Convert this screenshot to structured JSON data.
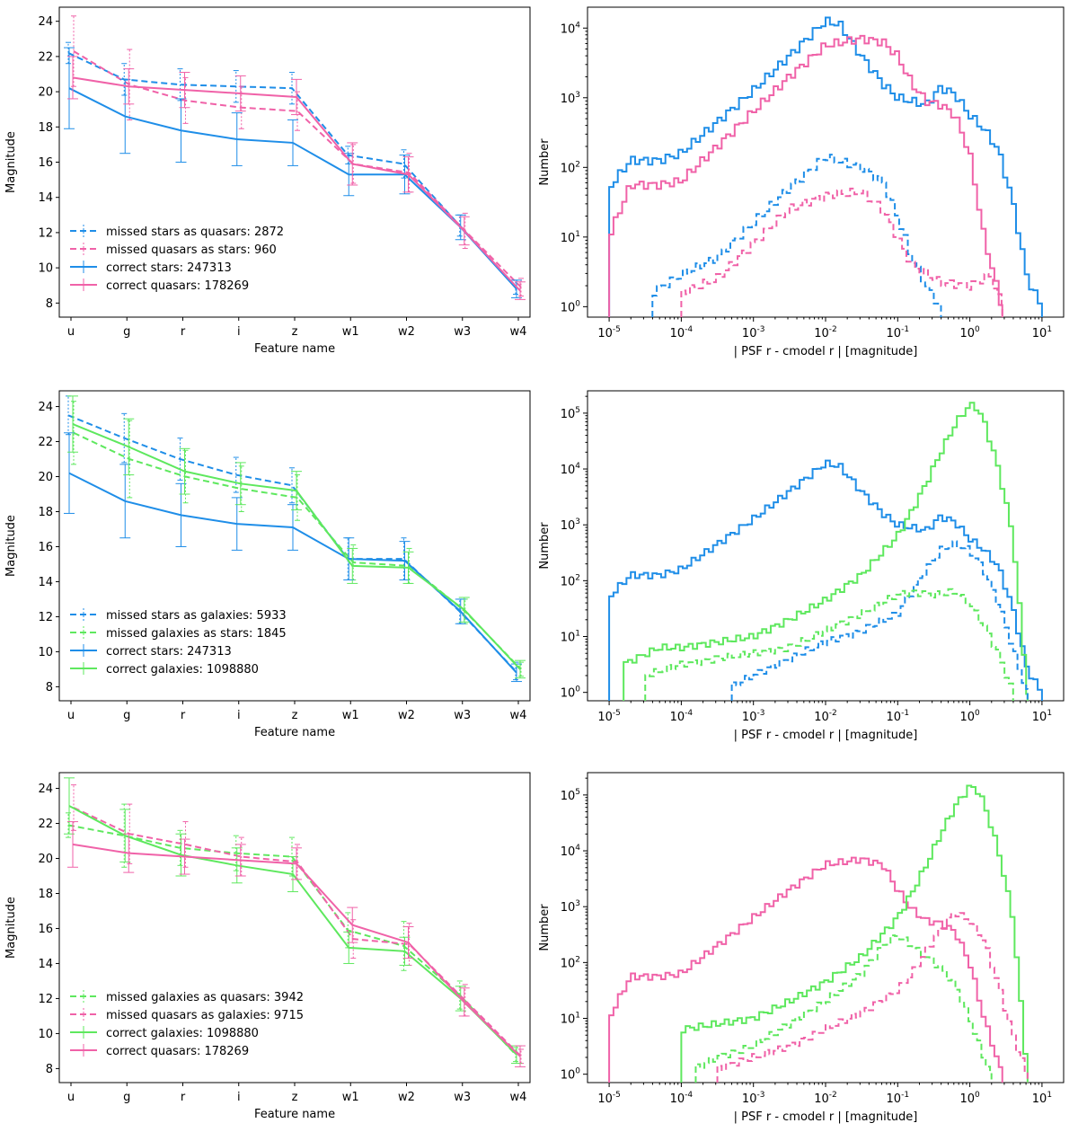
{
  "colors": {
    "star": "#1f8ee8",
    "quasar": "#f062a8",
    "galaxy": "#5ee85e"
  },
  "chart_data": [
    {
      "type": "line",
      "title": "",
      "xlabel": "Feature name",
      "ylabel": "Magnitude",
      "categories": [
        "u",
        "g",
        "r",
        "i",
        "z",
        "w1",
        "w2",
        "w3",
        "w4"
      ],
      "ylim": [
        7.2,
        24.8
      ],
      "yticks": [
        "8",
        "10",
        "12",
        "14",
        "16",
        "18",
        "20",
        "22",
        "24"
      ],
      "legend_position": "lower-left",
      "series": [
        {
          "name": "missed stars as quasars: 2872",
          "cls": "star",
          "dashed": true,
          "values": [
            22.2,
            20.7,
            20.4,
            20.3,
            20.2,
            16.4,
            15.9,
            12.4,
            8.9
          ],
          "err": [
            0.6,
            0.9,
            0.9,
            0.9,
            0.9,
            0.5,
            0.8,
            0.6,
            0.4
          ]
        },
        {
          "name": "missed quasars as stars: 960",
          "cls": "quasar",
          "dashed": true,
          "values": [
            22.3,
            20.4,
            19.5,
            19.1,
            18.9,
            15.9,
            15.4,
            12.1,
            8.9
          ],
          "err": [
            2.0,
            2.0,
            1.3,
            1.2,
            1.1,
            1.1,
            1.1,
            1.0,
            0.5
          ]
        },
        {
          "name": "correct stars: 247313",
          "cls": "star",
          "dashed": false,
          "values": [
            20.2,
            18.6,
            17.8,
            17.3,
            17.1,
            15.3,
            15.3,
            12.3,
            8.8
          ],
          "err": [
            2.3,
            2.1,
            1.8,
            1.5,
            1.3,
            1.2,
            1.1,
            0.7,
            0.5
          ]
        },
        {
          "name": "correct quasars: 178269",
          "cls": "quasar",
          "dashed": false,
          "values": [
            20.8,
            20.3,
            20.1,
            19.9,
            19.7,
            15.9,
            15.3,
            12.1,
            8.7
          ],
          "err": [
            1.2,
            1.0,
            1.0,
            1.0,
            1.0,
            1.2,
            1.0,
            0.8,
            0.5
          ]
        }
      ]
    },
    {
      "type": "line",
      "title": "",
      "xlabel": "Feature name",
      "ylabel": "Magnitude",
      "categories": [
        "u",
        "g",
        "r",
        "i",
        "z",
        "w1",
        "w2",
        "w3",
        "w4"
      ],
      "ylim": [
        7.2,
        24.9
      ],
      "yticks": [
        "8",
        "10",
        "12",
        "14",
        "16",
        "18",
        "20",
        "22",
        "24"
      ],
      "legend_position": "lower-left",
      "series": [
        {
          "name": "missed stars as galaxies: 5933",
          "cls": "star",
          "dashed": true,
          "values": [
            23.5,
            22.2,
            21.0,
            20.1,
            19.5,
            15.3,
            15.3,
            12.3,
            8.9
          ],
          "err": [
            1.1,
            1.4,
            1.2,
            1.0,
            1.0,
            1.2,
            1.2,
            0.7,
            0.5
          ]
        },
        {
          "name": "missed galaxies as stars: 1845",
          "cls": "galaxy",
          "dashed": true,
          "values": [
            22.5,
            21.0,
            20.0,
            19.3,
            18.8,
            15.1,
            14.9,
            12.3,
            9.0
          ],
          "err": [
            1.8,
            2.2,
            1.5,
            1.3,
            1.3,
            1.0,
            1.0,
            0.7,
            0.4
          ]
        },
        {
          "name": "correct stars: 247313",
          "cls": "star",
          "dashed": false,
          "values": [
            20.2,
            18.6,
            17.8,
            17.3,
            17.1,
            15.3,
            15.2,
            12.3,
            8.8
          ],
          "err": [
            2.3,
            2.1,
            1.8,
            1.5,
            1.3,
            1.2,
            1.1,
            0.7,
            0.5
          ]
        },
        {
          "name": "correct galaxies: 1098880",
          "cls": "galaxy",
          "dashed": false,
          "values": [
            23.0,
            21.7,
            20.3,
            19.6,
            19.2,
            14.9,
            14.8,
            12.4,
            9.0
          ],
          "err": [
            1.6,
            1.6,
            1.3,
            1.2,
            1.1,
            1.0,
            0.9,
            0.7,
            0.5
          ]
        }
      ]
    },
    {
      "type": "line",
      "title": "",
      "xlabel": "Feature name",
      "ylabel": "Magnitude",
      "categories": [
        "u",
        "g",
        "r",
        "i",
        "z",
        "w1",
        "w2",
        "w3",
        "w4"
      ],
      "ylim": [
        7.2,
        24.9
      ],
      "yticks": [
        "8",
        "10",
        "12",
        "14",
        "16",
        "18",
        "20",
        "22",
        "24"
      ],
      "legend_position": "lower-left",
      "series": [
        {
          "name": "missed galaxies as quasars: 3942",
          "cls": "galaxy",
          "dashed": true,
          "values": [
            21.9,
            21.3,
            20.6,
            20.3,
            20.1,
            15.9,
            15.0,
            12.2,
            8.8
          ],
          "err": [
            0.7,
            1.8,
            1.0,
            1.0,
            1.1,
            1.0,
            1.4,
            0.8,
            0.4
          ]
        },
        {
          "name": "missed quasars as galaxies: 9715",
          "cls": "quasar",
          "dashed": true,
          "values": [
            22.9,
            21.4,
            20.8,
            20.1,
            19.8,
            15.4,
            15.1,
            11.9,
            8.7
          ],
          "err": [
            1.3,
            1.7,
            1.3,
            1.1,
            1.0,
            1.1,
            1.2,
            0.9,
            0.4
          ]
        },
        {
          "name": "correct galaxies: 1098880",
          "cls": "galaxy",
          "dashed": false,
          "values": [
            23.0,
            21.3,
            20.2,
            19.6,
            19.1,
            14.9,
            14.7,
            12.0,
            8.8
          ],
          "err": [
            1.6,
            1.5,
            1.2,
            1.0,
            1.0,
            0.9,
            0.8,
            0.7,
            0.5
          ]
        },
        {
          "name": "correct quasars: 178269",
          "cls": "quasar",
          "dashed": false,
          "values": [
            20.8,
            20.3,
            20.1,
            19.9,
            19.7,
            16.2,
            15.2,
            11.8,
            8.7
          ],
          "err": [
            1.3,
            1.1,
            1.0,
            0.9,
            0.9,
            1.0,
            0.9,
            0.8,
            0.6
          ]
        }
      ]
    },
    {
      "type": "line",
      "subtype": "step-histogram-loglog",
      "title": "",
      "xlabel": "| PSF r - cmodel r | [magnitude]",
      "ylabel": "Number",
      "xlim_log10": [
        -5.3,
        1.3
      ],
      "ylim_log10": [
        -0.15,
        4.3
      ],
      "xticks": [
        "10^-5",
        "10^-4",
        "10^-3",
        "10^-2",
        "10^-1",
        "10^0",
        "10^1"
      ],
      "yticks": [
        "10^0",
        "10^1",
        "10^2",
        "10^3",
        "10^4"
      ],
      "series": [
        {
          "name": "correct stars",
          "cls": "star",
          "dashed": false,
          "log_x": [
            -5,
            -4.7,
            -4.3,
            -4,
            -3.5,
            -3,
            -2.5,
            -2,
            -1.8,
            -1.5,
            -1.2,
            -1,
            -0.8,
            -0.6,
            -0.4,
            -0.2,
            0,
            0.2,
            0.4,
            0.6,
            0.8,
            1
          ],
          "log_y": [
            1.7,
            2.1,
            2.1,
            2.2,
            2.65,
            3.1,
            3.6,
            4.1,
            4.05,
            3.6,
            3.2,
            3.0,
            2.95,
            2.9,
            3.15,
            3.05,
            2.75,
            2.55,
            2.25,
            1.5,
            0.4,
            0
          ]
        },
        {
          "name": "correct quasars",
          "cls": "quasar",
          "dashed": false,
          "log_x": [
            -5,
            -4.7,
            -4.3,
            -4,
            -3.5,
            -3,
            -2.5,
            -2,
            -1.5,
            -1.2,
            -1,
            -0.8,
            -0.6,
            -0.4,
            -0.2,
            0,
            0.2,
            0.4,
            0.45
          ],
          "log_y": [
            1.0,
            1.75,
            1.75,
            1.8,
            2.3,
            2.8,
            3.3,
            3.75,
            3.85,
            3.8,
            3.6,
            3.2,
            2.95,
            2.9,
            2.75,
            2.2,
            1.0,
            0.2,
            0
          ]
        },
        {
          "name": "missed stars as quasars",
          "cls": "star",
          "dashed": true,
          "log_x": [
            -4.4,
            -4,
            -3.5,
            -3,
            -2.5,
            -2,
            -1.5,
            -1.2,
            -1,
            -0.8,
            -0.6,
            -0.4
          ],
          "log_y": [
            0.2,
            0.45,
            0.7,
            1.2,
            1.7,
            2.15,
            2.0,
            1.8,
            1.3,
            0.7,
            0.3,
            0
          ]
        },
        {
          "name": "missed quasars as stars",
          "cls": "quasar",
          "dashed": true,
          "log_x": [
            -4,
            -3.5,
            -3,
            -2.5,
            -2,
            -1.5,
            -1.2,
            -1,
            -0.8,
            -0.4,
            0,
            0.3,
            0.45
          ],
          "log_y": [
            0.2,
            0.4,
            0.9,
            1.4,
            1.6,
            1.65,
            1.4,
            1.0,
            0.6,
            0.35,
            0.3,
            0.45,
            0
          ]
        }
      ]
    },
    {
      "type": "line",
      "subtype": "step-histogram-loglog",
      "title": "",
      "xlabel": "| PSF r - cmodel r | [magnitude]",
      "ylabel": "Number",
      "xlim_log10": [
        -5.3,
        1.3
      ],
      "ylim_log10": [
        -0.15,
        5.4
      ],
      "xticks": [
        "10^-5",
        "10^-4",
        "10^-3",
        "10^-2",
        "10^-1",
        "10^0",
        "10^1"
      ],
      "yticks": [
        "10^0",
        "10^1",
        "10^2",
        "10^3",
        "10^4",
        "10^5"
      ],
      "series": [
        {
          "name": "correct stars",
          "cls": "star",
          "dashed": false,
          "log_x": [
            -5,
            -4.7,
            -4.3,
            -4,
            -3.5,
            -3,
            -2.5,
            -2,
            -1.8,
            -1.5,
            -1.2,
            -1,
            -0.8,
            -0.6,
            -0.4,
            -0.2,
            0,
            0.2,
            0.4,
            0.6,
            0.8,
            1
          ],
          "log_y": [
            1.7,
            2.1,
            2.1,
            2.2,
            2.65,
            3.1,
            3.6,
            4.1,
            4.05,
            3.6,
            3.2,
            3.0,
            2.95,
            2.9,
            3.15,
            3.05,
            2.75,
            2.55,
            2.25,
            1.5,
            0.4,
            0
          ]
        },
        {
          "name": "correct galaxies",
          "cls": "galaxy",
          "dashed": false,
          "log_x": [
            -4.8,
            -4.3,
            -4,
            -3.5,
            -3,
            -2.5,
            -2,
            -1.5,
            -1,
            -0.8,
            -0.6,
            -0.4,
            -0.2,
            0,
            0.1,
            0.2,
            0.4,
            0.6,
            0.8
          ],
          "log_y": [
            0.5,
            0.8,
            0.8,
            0.9,
            1.0,
            1.3,
            1.65,
            2.1,
            2.8,
            3.25,
            3.75,
            4.3,
            4.8,
            5.15,
            5.1,
            4.85,
            4.0,
            2.8,
            0
          ]
        },
        {
          "name": "missed stars as galaxies",
          "cls": "star",
          "dashed": true,
          "log_x": [
            -3.3,
            -3,
            -2.5,
            -2,
            -1.5,
            -1,
            -0.8,
            -0.6,
            -0.4,
            -0.2,
            0,
            0.2,
            0.4,
            0.6,
            0.8
          ],
          "log_y": [
            0.1,
            0.3,
            0.6,
            0.9,
            1.1,
            1.4,
            1.8,
            2.2,
            2.55,
            2.65,
            2.55,
            2.2,
            1.6,
            0.8,
            0
          ]
        },
        {
          "name": "missed galaxies as stars",
          "cls": "galaxy",
          "dashed": true,
          "log_x": [
            -4.5,
            -4,
            -3.5,
            -3,
            -2.5,
            -2,
            -1.5,
            -1,
            -0.8,
            -0.5,
            -0.2,
            0,
            0.2,
            0.4,
            0.6
          ],
          "log_y": [
            0.3,
            0.5,
            0.6,
            0.7,
            0.8,
            1.1,
            1.4,
            1.75,
            1.8,
            1.75,
            1.8,
            1.6,
            1.2,
            0.7,
            0
          ]
        }
      ]
    },
    {
      "type": "line",
      "subtype": "step-histogram-loglog",
      "title": "",
      "xlabel": "| PSF r - cmodel r | [magnitude]",
      "ylabel": "Number",
      "xlim_log10": [
        -5.3,
        1.3
      ],
      "ylim_log10": [
        -0.15,
        5.4
      ],
      "xticks": [
        "10^-5",
        "10^-4",
        "10^-3",
        "10^-2",
        "10^-1",
        "10^0",
        "10^1"
      ],
      "yticks": [
        "10^0",
        "10^1",
        "10^2",
        "10^3",
        "10^4",
        "10^5"
      ],
      "series": [
        {
          "name": "correct quasars",
          "cls": "quasar",
          "dashed": false,
          "log_x": [
            -5,
            -4.7,
            -4.3,
            -4,
            -3.5,
            -3,
            -2.5,
            -2,
            -1.5,
            -1.2,
            -1,
            -0.8,
            -0.6,
            -0.4,
            -0.2,
            0,
            0.2,
            0.4,
            0.45
          ],
          "log_y": [
            1.0,
            1.75,
            1.75,
            1.8,
            2.3,
            2.8,
            3.3,
            3.75,
            3.85,
            3.75,
            3.3,
            2.95,
            2.75,
            2.7,
            2.55,
            2.0,
            1.0,
            0.2,
            0
          ]
        },
        {
          "name": "correct galaxies",
          "cls": "galaxy",
          "dashed": false,
          "log_x": [
            -4,
            -3.5,
            -3,
            -2.5,
            -2,
            -1.5,
            -1,
            -0.8,
            -0.6,
            -0.4,
            -0.2,
            0,
            0.1,
            0.2,
            0.4,
            0.6,
            0.8
          ],
          "log_y": [
            0.8,
            0.9,
            1.0,
            1.3,
            1.65,
            2.1,
            2.8,
            3.25,
            3.75,
            4.3,
            4.8,
            5.15,
            5.1,
            4.85,
            4.0,
            2.8,
            0
          ]
        },
        {
          "name": "missed galaxies as quasars",
          "cls": "galaxy",
          "dashed": true,
          "log_x": [
            -3.8,
            -3.5,
            -3,
            -2.5,
            -2,
            -1.5,
            -1.2,
            -1,
            -0.8,
            -0.6,
            -0.4,
            -0.2,
            0,
            0.2,
            0.3
          ],
          "log_y": [
            0.1,
            0.3,
            0.5,
            0.9,
            1.3,
            1.8,
            2.3,
            2.5,
            2.3,
            2.1,
            1.9,
            1.6,
            1.0,
            0.3,
            0
          ]
        },
        {
          "name": "missed quasars as galaxies",
          "cls": "quasar",
          "dashed": true,
          "log_x": [
            -3.5,
            -3,
            -2.5,
            -2,
            -1.5,
            -1,
            -0.8,
            -0.6,
            -0.4,
            -0.2,
            0,
            0.2,
            0.4,
            0.6,
            0.8
          ],
          "log_y": [
            0.1,
            0.3,
            0.5,
            0.8,
            1.1,
            1.5,
            1.8,
            2.2,
            2.6,
            2.9,
            2.75,
            2.4,
            1.6,
            0.7,
            0
          ]
        }
      ]
    }
  ]
}
